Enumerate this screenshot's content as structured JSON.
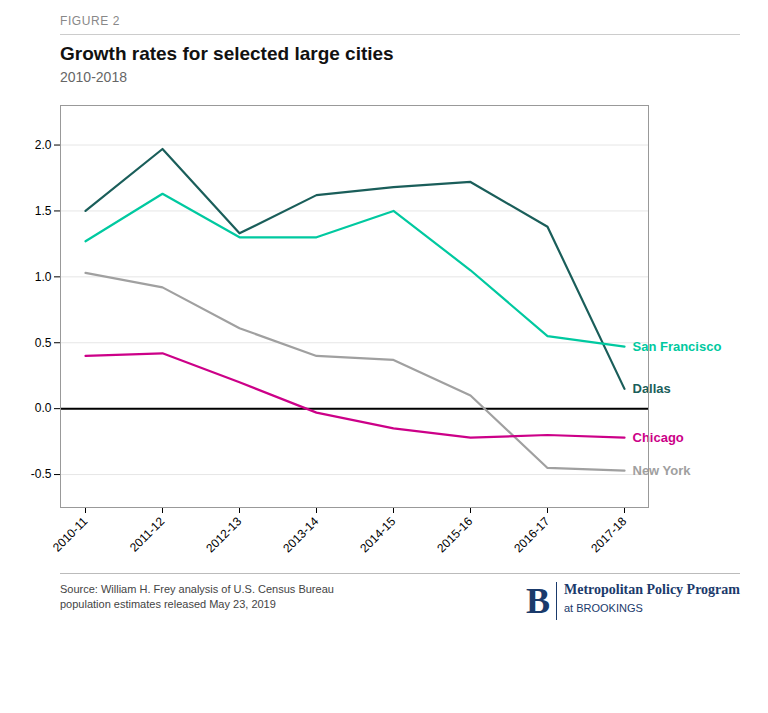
{
  "chart_data": {
    "type": "line",
    "title": "Growth rates for selected large cities",
    "subtitle": "2010-2018",
    "categories": [
      "2010-11",
      "2011-12",
      "2012-13",
      "2013-14",
      "2014-15",
      "2015-16",
      "2016-17",
      "2017-18"
    ],
    "series": [
      {
        "name": "Dallas",
        "color": "#1a5e5a",
        "values": [
          1.5,
          1.97,
          1.33,
          1.62,
          1.68,
          1.72,
          1.38,
          0.15
        ]
      },
      {
        "name": "San Francisco",
        "color": "#00c9a0",
        "values": [
          1.27,
          1.63,
          1.3,
          1.3,
          1.5,
          1.05,
          0.55,
          0.47
        ]
      },
      {
        "name": "New York",
        "color": "#a0a0a0",
        "values": [
          1.03,
          0.92,
          0.61,
          0.4,
          0.37,
          0.1,
          -0.45,
          -0.47
        ]
      },
      {
        "name": "Chicago",
        "color": "#cc0088",
        "values": [
          0.4,
          0.42,
          0.2,
          -0.03,
          -0.15,
          -0.22,
          -0.2,
          -0.22
        ]
      }
    ],
    "ylim": [
      -0.75,
      2.3
    ],
    "yticks": [
      -0.5,
      {
        "value": 0,
        "label": "0.0"
      },
      0.5,
      {
        "value": 1,
        "label": "1.0"
      },
      1.5,
      {
        "value": 2,
        "label": "2.0"
      }
    ],
    "grid": true,
    "reference_lines": [
      {
        "y": 0,
        "color": "#000000"
      }
    ],
    "annotations": {
      "figure_label": "FIGURE 2",
      "source": "Source: William H. Frey analysis of U.S. Census Bureau\npopulation estimates released May 23, 2019",
      "logo": {
        "mark": "B",
        "name": "Metropolitan Policy Program",
        "sub": "at BROOKINGS",
        "color": "#1a3a6b"
      }
    }
  }
}
